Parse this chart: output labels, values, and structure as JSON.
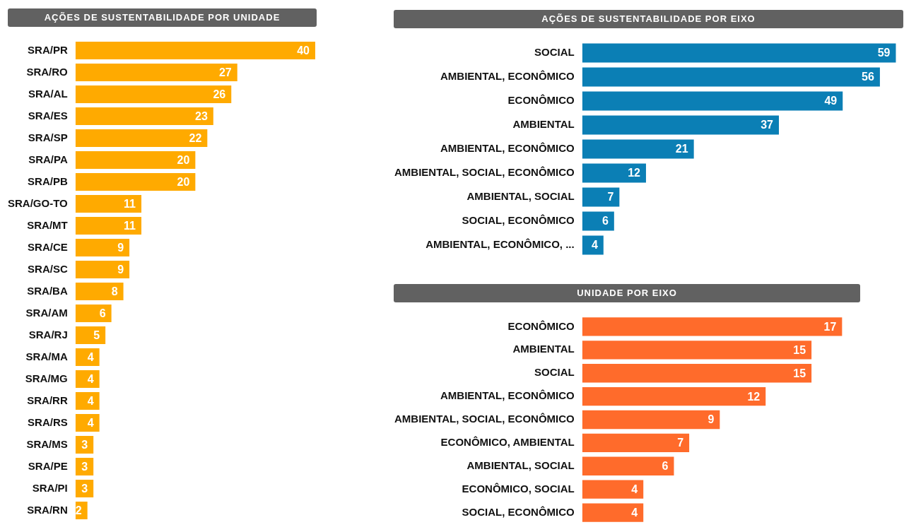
{
  "chart_data": [
    {
      "type": "bar",
      "orientation": "horizontal",
      "title": "AÇÕES DE SUSTENTABILIDADE POR UNIDADE",
      "categories": [
        "SRA/PR",
        "SRA/RO",
        "SRA/AL",
        "SRA/ES",
        "SRA/SP",
        "SRA/PA",
        "SRA/PB",
        "SRA/GO-TO",
        "SRA/MT",
        "SRA/CE",
        "SRA/SC",
        "SRA/BA",
        "SRA/AM",
        "SRA/RJ",
        "SRA/MA",
        "SRA/MG",
        "SRA/RR",
        "SRA/RS",
        "SRA/MS",
        "SRA/PE",
        "SRA/PI",
        "SRA/RN"
      ],
      "values": [
        40,
        27,
        26,
        23,
        22,
        20,
        20,
        11,
        11,
        9,
        9,
        8,
        6,
        5,
        4,
        4,
        4,
        4,
        3,
        3,
        3,
        2
      ],
      "color": "#ffaa00",
      "data_labels": true,
      "tick_labels": "y"
    },
    {
      "type": "bar",
      "orientation": "horizontal",
      "title": "AÇÕES DE SUSTENTABILIDADE POR EIXO",
      "categories": [
        "SOCIAL",
        "AMBIENTAL, ECONÔMICO",
        "ECONÔMICO",
        "AMBIENTAL",
        "AMBIENTAL, ECONÔMICO",
        "AMBIENTAL, SOCIAL, ECONÔMICO",
        "AMBIENTAL, SOCIAL",
        "SOCIAL, ECONÔMICO",
        "AMBIENTAL, ECONÔMICO, ..."
      ],
      "values": [
        59,
        56,
        49,
        37,
        21,
        12,
        7,
        6,
        4
      ],
      "color": "#0b7fb5",
      "data_labels": true,
      "tick_labels": "y"
    },
    {
      "type": "bar",
      "orientation": "horizontal",
      "title": "UNIDADE POR EIXO",
      "categories": [
        "ECONÔMICO",
        "AMBIENTAL",
        "SOCIAL",
        "AMBIENTAL, ECONÔMICO",
        "AMBIENTAL, SOCIAL, ECONÔMICO",
        "ECONÔMICO, AMBIENTAL",
        "AMBIENTAL, SOCIAL",
        "ECONÔMICO, SOCIAL",
        "SOCIAL, ECONÔMICO"
      ],
      "values": [
        17,
        15,
        15,
        12,
        9,
        7,
        6,
        4,
        4
      ],
      "color": "#ff6b2b",
      "data_labels": true,
      "tick_labels": "y"
    }
  ]
}
